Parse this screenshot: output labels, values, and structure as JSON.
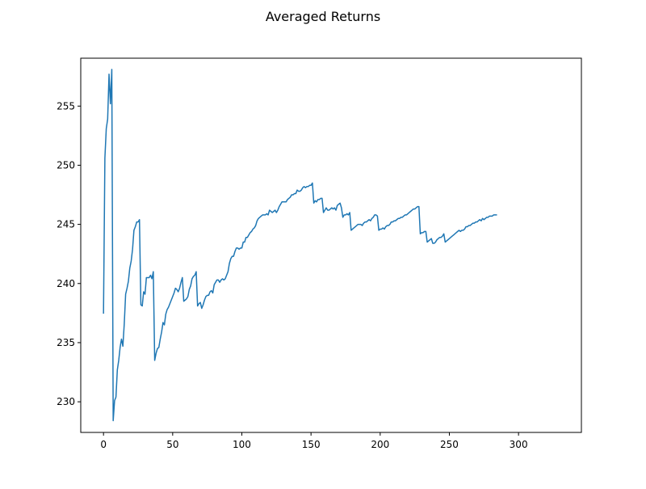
{
  "chart_data": {
    "type": "line",
    "title": "Averaged Returns",
    "xlabel": "",
    "ylabel": "",
    "xlim": [
      -16.45,
      345.45
    ],
    "ylim": [
      227.41,
      259.05
    ],
    "xticks": [
      0,
      50,
      100,
      150,
      200,
      250,
      300
    ],
    "yticks": [
      230,
      235,
      240,
      245,
      250,
      255
    ],
    "grid": false,
    "legend": "none",
    "series": [
      {
        "color": "#1f77b4",
        "points": [
          [
            0,
            237.5
          ],
          [
            1,
            250.6
          ],
          [
            2,
            253.1
          ],
          [
            3,
            253.9
          ],
          [
            4,
            257.7
          ],
          [
            5,
            255.2
          ],
          [
            6,
            258.1
          ],
          [
            7,
            228.4
          ],
          [
            8,
            230.1
          ],
          [
            9,
            230.4
          ],
          [
            10,
            232.7
          ],
          [
            11,
            233.5
          ],
          [
            12,
            234.6
          ],
          [
            13,
            235.3
          ],
          [
            14,
            234.7
          ],
          [
            15,
            236.6
          ],
          [
            16,
            239.1
          ],
          [
            17,
            239.6
          ],
          [
            18,
            240.2
          ],
          [
            19,
            241.3
          ],
          [
            20,
            241.9
          ],
          [
            21,
            242.9
          ],
          [
            22,
            244.5
          ],
          [
            23,
            244.8
          ],
          [
            24,
            245.2
          ],
          [
            25,
            245.2
          ],
          [
            26,
            245.4
          ],
          [
            27,
            238.2
          ],
          [
            28,
            238.1
          ],
          [
            29,
            239.3
          ],
          [
            30,
            239.1
          ],
          [
            31,
            240.5
          ],
          [
            32,
            240.5
          ],
          [
            33,
            240.5
          ],
          [
            34,
            240.7
          ],
          [
            35,
            240.4
          ],
          [
            36,
            241.0
          ],
          [
            37,
            233.5
          ],
          [
            38,
            234.1
          ],
          [
            39,
            234.5
          ],
          [
            40,
            234.6
          ],
          [
            41,
            235.3
          ],
          [
            42,
            235.9
          ],
          [
            43,
            236.7
          ],
          [
            44,
            236.5
          ],
          [
            45,
            237.4
          ],
          [
            46,
            237.8
          ],
          [
            47,
            238.0
          ],
          [
            48,
            238.3
          ],
          [
            49,
            238.6
          ],
          [
            50,
            238.9
          ],
          [
            51,
            239.2
          ],
          [
            52,
            239.6
          ],
          [
            53,
            239.5
          ],
          [
            54,
            239.3
          ],
          [
            55,
            239.6
          ],
          [
            56,
            240.1
          ],
          [
            57,
            240.5
          ],
          [
            58,
            238.5
          ],
          [
            59,
            238.6
          ],
          [
            60,
            238.7
          ],
          [
            61,
            238.9
          ],
          [
            62,
            239.5
          ],
          [
            63,
            239.8
          ],
          [
            64,
            240.4
          ],
          [
            65,
            240.6
          ],
          [
            66,
            240.7
          ],
          [
            67,
            241.0
          ],
          [
            68,
            238.1
          ],
          [
            69,
            238.3
          ],
          [
            70,
            238.4
          ],
          [
            71,
            237.9
          ],
          [
            72,
            238.2
          ],
          [
            73,
            238.6
          ],
          [
            74,
            238.9
          ],
          [
            75,
            239.0
          ],
          [
            76,
            239.0
          ],
          [
            77,
            239.3
          ],
          [
            78,
            239.4
          ],
          [
            79,
            239.2
          ],
          [
            80,
            239.9
          ],
          [
            81,
            240.1
          ],
          [
            82,
            240.3
          ],
          [
            83,
            240.3
          ],
          [
            84,
            240.1
          ],
          [
            85,
            240.3
          ],
          [
            86,
            240.4
          ],
          [
            87,
            240.3
          ],
          [
            88,
            240.4
          ],
          [
            89,
            240.7
          ],
          [
            90,
            241.0
          ],
          [
            91,
            241.7
          ],
          [
            92,
            242.1
          ],
          [
            93,
            242.3
          ],
          [
            94,
            242.3
          ],
          [
            95,
            242.7
          ],
          [
            96,
            243.0
          ],
          [
            97,
            243.0
          ],
          [
            98,
            242.9
          ],
          [
            99,
            243.0
          ],
          [
            100,
            243.0
          ],
          [
            101,
            243.5
          ],
          [
            102,
            243.5
          ],
          [
            103,
            243.9
          ],
          [
            104,
            243.9
          ],
          [
            105,
            244.1
          ],
          [
            106,
            244.3
          ],
          [
            107,
            244.4
          ],
          [
            108,
            244.6
          ],
          [
            109,
            244.7
          ],
          [
            110,
            244.9
          ],
          [
            111,
            245.3
          ],
          [
            112,
            245.5
          ],
          [
            113,
            245.6
          ],
          [
            114,
            245.7
          ],
          [
            115,
            245.8
          ],
          [
            116,
            245.8
          ],
          [
            117,
            245.8
          ],
          [
            118,
            245.9
          ],
          [
            119,
            245.8
          ],
          [
            120,
            246.2
          ],
          [
            121,
            246.1
          ],
          [
            122,
            246.0
          ],
          [
            123,
            246.1
          ],
          [
            124,
            246.2
          ],
          [
            125,
            246.0
          ],
          [
            126,
            246.2
          ],
          [
            127,
            246.5
          ],
          [
            128,
            246.7
          ],
          [
            129,
            246.9
          ],
          [
            130,
            246.9
          ],
          [
            131,
            246.9
          ],
          [
            132,
            246.9
          ],
          [
            133,
            247.1
          ],
          [
            134,
            247.2
          ],
          [
            135,
            247.3
          ],
          [
            136,
            247.5
          ],
          [
            137,
            247.5
          ],
          [
            138,
            247.6
          ],
          [
            139,
            247.6
          ],
          [
            140,
            247.9
          ],
          [
            141,
            247.8
          ],
          [
            142,
            247.8
          ],
          [
            143,
            247.9
          ],
          [
            144,
            248.1
          ],
          [
            145,
            248.2
          ],
          [
            146,
            248.1
          ],
          [
            147,
            248.2
          ],
          [
            148,
            248.2
          ],
          [
            149,
            248.3
          ],
          [
            150,
            248.3
          ],
          [
            151,
            248.5
          ],
          [
            152,
            246.8
          ],
          [
            153,
            247.0
          ],
          [
            154,
            246.9
          ],
          [
            155,
            247.1
          ],
          [
            156,
            247.1
          ],
          [
            157,
            247.2
          ],
          [
            158,
            247.2
          ],
          [
            159,
            246.0
          ],
          [
            160,
            246.2
          ],
          [
            161,
            246.4
          ],
          [
            162,
            246.2
          ],
          [
            163,
            246.2
          ],
          [
            164,
            246.3
          ],
          [
            165,
            246.4
          ],
          [
            166,
            246.3
          ],
          [
            167,
            246.4
          ],
          [
            168,
            246.2
          ],
          [
            169,
            246.6
          ],
          [
            170,
            246.7
          ],
          [
            171,
            246.8
          ],
          [
            172,
            246.4
          ],
          [
            173,
            245.6
          ],
          [
            174,
            245.8
          ],
          [
            175,
            245.8
          ],
          [
            176,
            245.9
          ],
          [
            177,
            245.8
          ],
          [
            178,
            246.0
          ],
          [
            179,
            244.5
          ],
          [
            180,
            244.6
          ],
          [
            181,
            244.7
          ],
          [
            182,
            244.8
          ],
          [
            183,
            244.9
          ],
          [
            184,
            245.0
          ],
          [
            185,
            245.0
          ],
          [
            186,
            245.0
          ],
          [
            187,
            244.9
          ],
          [
            188,
            245.1
          ],
          [
            189,
            245.2
          ],
          [
            190,
            245.2
          ],
          [
            191,
            245.3
          ],
          [
            192,
            245.4
          ],
          [
            193,
            245.3
          ],
          [
            194,
            245.5
          ],
          [
            195,
            245.6
          ],
          [
            196,
            245.8
          ],
          [
            197,
            245.8
          ],
          [
            198,
            245.7
          ],
          [
            199,
            244.5
          ],
          [
            200,
            244.6
          ],
          [
            201,
            244.6
          ],
          [
            202,
            244.7
          ],
          [
            203,
            244.6
          ],
          [
            204,
            244.8
          ],
          [
            205,
            244.9
          ],
          [
            206,
            244.9
          ],
          [
            207,
            245.0
          ],
          [
            208,
            245.2
          ],
          [
            209,
            245.2
          ],
          [
            210,
            245.3
          ],
          [
            211,
            245.3
          ],
          [
            212,
            245.4
          ],
          [
            213,
            245.5
          ],
          [
            214,
            245.5
          ],
          [
            215,
            245.6
          ],
          [
            216,
            245.6
          ],
          [
            217,
            245.7
          ],
          [
            218,
            245.8
          ],
          [
            219,
            245.8
          ],
          [
            220,
            245.9
          ],
          [
            221,
            246.0
          ],
          [
            222,
            246.1
          ],
          [
            223,
            246.2
          ],
          [
            224,
            246.3
          ],
          [
            225,
            246.3
          ],
          [
            226,
            246.4
          ],
          [
            227,
            246.5
          ],
          [
            228,
            246.5
          ],
          [
            229,
            244.2
          ],
          [
            230,
            244.3
          ],
          [
            231,
            244.3
          ],
          [
            232,
            244.4
          ],
          [
            233,
            244.4
          ],
          [
            234,
            243.5
          ],
          [
            235,
            243.6
          ],
          [
            236,
            243.7
          ],
          [
            237,
            243.8
          ],
          [
            238,
            243.4
          ],
          [
            239,
            243.4
          ],
          [
            240,
            243.5
          ],
          [
            241,
            243.7
          ],
          [
            242,
            243.8
          ],
          [
            243,
            243.9
          ],
          [
            244,
            243.9
          ],
          [
            245,
            244.0
          ],
          [
            246,
            244.2
          ],
          [
            247,
            243.5
          ],
          [
            248,
            243.6
          ],
          [
            249,
            243.7
          ],
          [
            250,
            243.8
          ],
          [
            251,
            243.9
          ],
          [
            252,
            244.0
          ],
          [
            253,
            244.1
          ],
          [
            254,
            244.2
          ],
          [
            255,
            244.3
          ],
          [
            256,
            244.4
          ],
          [
            257,
            244.5
          ],
          [
            258,
            244.4
          ],
          [
            259,
            244.5
          ],
          [
            260,
            244.5
          ],
          [
            261,
            244.6
          ],
          [
            262,
            244.8
          ],
          [
            263,
            244.8
          ],
          [
            264,
            244.9
          ],
          [
            265,
            244.9
          ],
          [
            266,
            245.0
          ],
          [
            267,
            245.1
          ],
          [
            268,
            245.1
          ],
          [
            269,
            245.2
          ],
          [
            270,
            245.2
          ],
          [
            271,
            245.3
          ],
          [
            272,
            245.4
          ],
          [
            273,
            245.3
          ],
          [
            274,
            245.5
          ],
          [
            275,
            245.4
          ],
          [
            276,
            245.5
          ],
          [
            277,
            245.6
          ],
          [
            278,
            245.6
          ],
          [
            279,
            245.7
          ],
          [
            280,
            245.7
          ],
          [
            281,
            245.7
          ],
          [
            282,
            245.8
          ],
          [
            283,
            245.8
          ],
          [
            284,
            245.8
          ]
        ]
      }
    ]
  }
}
